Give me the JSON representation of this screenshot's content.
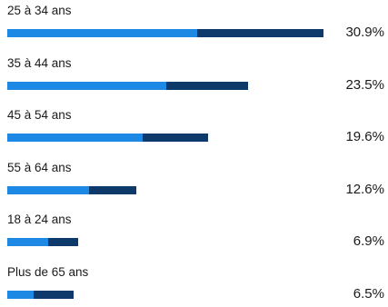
{
  "chart_data": {
    "type": "bar",
    "orientation": "horizontal",
    "stacked": true,
    "title": "",
    "xlabel": "",
    "ylabel": "",
    "xlim": [
      0,
      30.9
    ],
    "grid": false,
    "legend": "none",
    "categories": [
      "25 à 34 ans",
      "35 à 44 ans",
      "45 à 54 ans",
      "55 à 64 ans",
      "18 à 24 ans",
      "Plus de 65 ans"
    ],
    "value_labels": [
      "30.9%",
      "23.5%",
      "19.6%",
      "12.6%",
      "6.9%",
      "6.5%"
    ],
    "totals": [
      30.9,
      23.5,
      19.6,
      12.6,
      6.9,
      6.5
    ],
    "series": [
      {
        "color": "#1E88E5",
        "values": [
          18.6,
          15.5,
          13.2,
          8.0,
          4.0,
          2.6
        ]
      },
      {
        "color": "#0D3A6B",
        "values": [
          12.3,
          8.0,
          6.4,
          4.6,
          2.9,
          3.9
        ]
      }
    ]
  }
}
